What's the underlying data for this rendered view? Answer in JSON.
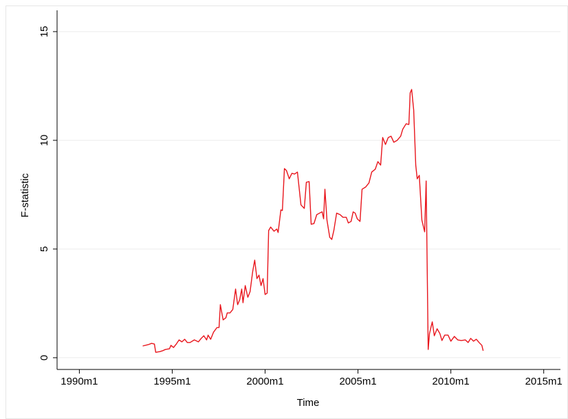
{
  "chart_data": {
    "type": "line",
    "x_label": "Time",
    "y_label": "F-statistic",
    "color": "#e8141b",
    "x": [
      1993.41,
      1993.7,
      1993.89,
      1994.04,
      1994.11,
      1994.33,
      1994.48,
      1994.63,
      1994.85,
      1994.93,
      1995.07,
      1995.22,
      1995.37,
      1995.52,
      1995.67,
      1995.81,
      1995.96,
      1996.19,
      1996.41,
      1996.56,
      1996.7,
      1996.85,
      1996.93,
      1997.07,
      1997.22,
      1997.41,
      1997.52,
      1997.59,
      1997.74,
      1997.89,
      1997.96,
      1998.11,
      1998.26,
      1998.41,
      1998.52,
      1998.63,
      1998.74,
      1998.81,
      1998.93,
      1999.07,
      1999.19,
      1999.33,
      1999.44,
      1999.56,
      1999.67,
      1999.78,
      1999.89,
      2000.0,
      2000.11,
      2000.19,
      2000.3,
      2000.48,
      2000.63,
      2000.7,
      2000.85,
      2000.93,
      2001.04,
      2001.15,
      2001.3,
      2001.44,
      2001.59,
      2001.74,
      2001.93,
      2002.11,
      2002.22,
      2002.37,
      2002.48,
      2002.63,
      2002.78,
      2002.93,
      2003.07,
      2003.15,
      2003.22,
      2003.33,
      2003.48,
      2003.59,
      2003.7,
      2003.85,
      2004.04,
      2004.19,
      2004.37,
      2004.48,
      2004.63,
      2004.74,
      2004.85,
      2004.96,
      2005.11,
      2005.22,
      2005.41,
      2005.59,
      2005.74,
      2005.93,
      2006.07,
      2006.22,
      2006.33,
      2006.48,
      2006.63,
      2006.78,
      2006.93,
      2007.11,
      2007.3,
      2007.41,
      2007.59,
      2007.74,
      2007.81,
      2007.89,
      2008.0,
      2008.11,
      2008.19,
      2008.3,
      2008.44,
      2008.59,
      2008.67,
      2008.78,
      2008.85,
      2009.0,
      2009.11,
      2009.26,
      2009.41,
      2009.52,
      2009.67,
      2009.85,
      2010.0,
      2010.19,
      2010.37,
      2010.56,
      2010.78,
      2010.93,
      2011.07,
      2011.22,
      2011.37,
      2011.52,
      2011.67,
      2011.74
    ],
    "values": [
      0.54,
      0.6,
      0.66,
      0.63,
      0.25,
      0.28,
      0.32,
      0.38,
      0.41,
      0.57,
      0.47,
      0.63,
      0.82,
      0.73,
      0.85,
      0.7,
      0.7,
      0.82,
      0.73,
      0.89,
      1.01,
      0.82,
      1.04,
      0.85,
      1.17,
      1.39,
      1.39,
      2.44,
      1.74,
      1.84,
      2.06,
      2.06,
      2.22,
      3.16,
      2.44,
      2.66,
      3.16,
      2.53,
      3.32,
      2.78,
      3.04,
      3.96,
      4.49,
      3.64,
      3.8,
      3.32,
      3.64,
      2.91,
      2.97,
      5.85,
      6.01,
      5.82,
      5.92,
      5.76,
      6.8,
      6.77,
      8.7,
      8.61,
      8.23,
      8.48,
      8.45,
      8.54,
      7.03,
      6.87,
      8.07,
      8.1,
      6.14,
      6.17,
      6.58,
      6.65,
      6.71,
      6.39,
      7.75,
      6.33,
      5.54,
      5.44,
      5.85,
      6.65,
      6.58,
      6.46,
      6.46,
      6.2,
      6.27,
      6.71,
      6.65,
      6.39,
      6.27,
      7.75,
      7.85,
      8.04,
      8.54,
      8.67,
      9.02,
      8.86,
      10.13,
      9.81,
      10.13,
      10.19,
      9.91,
      10.0,
      10.19,
      10.51,
      10.76,
      10.73,
      12.18,
      12.34,
      11.39,
      8.86,
      8.23,
      8.39,
      6.33,
      5.79,
      8.13,
      0.38,
      1.11,
      1.65,
      1.01,
      1.33,
      1.11,
      0.79,
      1.04,
      1.04,
      0.76,
      0.98,
      0.82,
      0.79,
      0.82,
      0.7,
      0.89,
      0.76,
      0.85,
      0.7,
      0.57,
      0.32
    ],
    "xlim": [
      1988.8,
      2015.9
    ],
    "xticks": [
      {
        "value": 1990,
        "label": "1990m1"
      },
      {
        "value": 1995,
        "label": "1995m1"
      },
      {
        "value": 2000,
        "label": "2000m1"
      },
      {
        "value": 2005,
        "label": "2005m1"
      },
      {
        "value": 2010,
        "label": "2010m1"
      },
      {
        "value": 2015,
        "label": "2015m1"
      }
    ],
    "ylim": [
      -0.54,
      15.98
    ],
    "yticks": [
      0,
      5,
      10,
      15
    ],
    "grid": true
  }
}
